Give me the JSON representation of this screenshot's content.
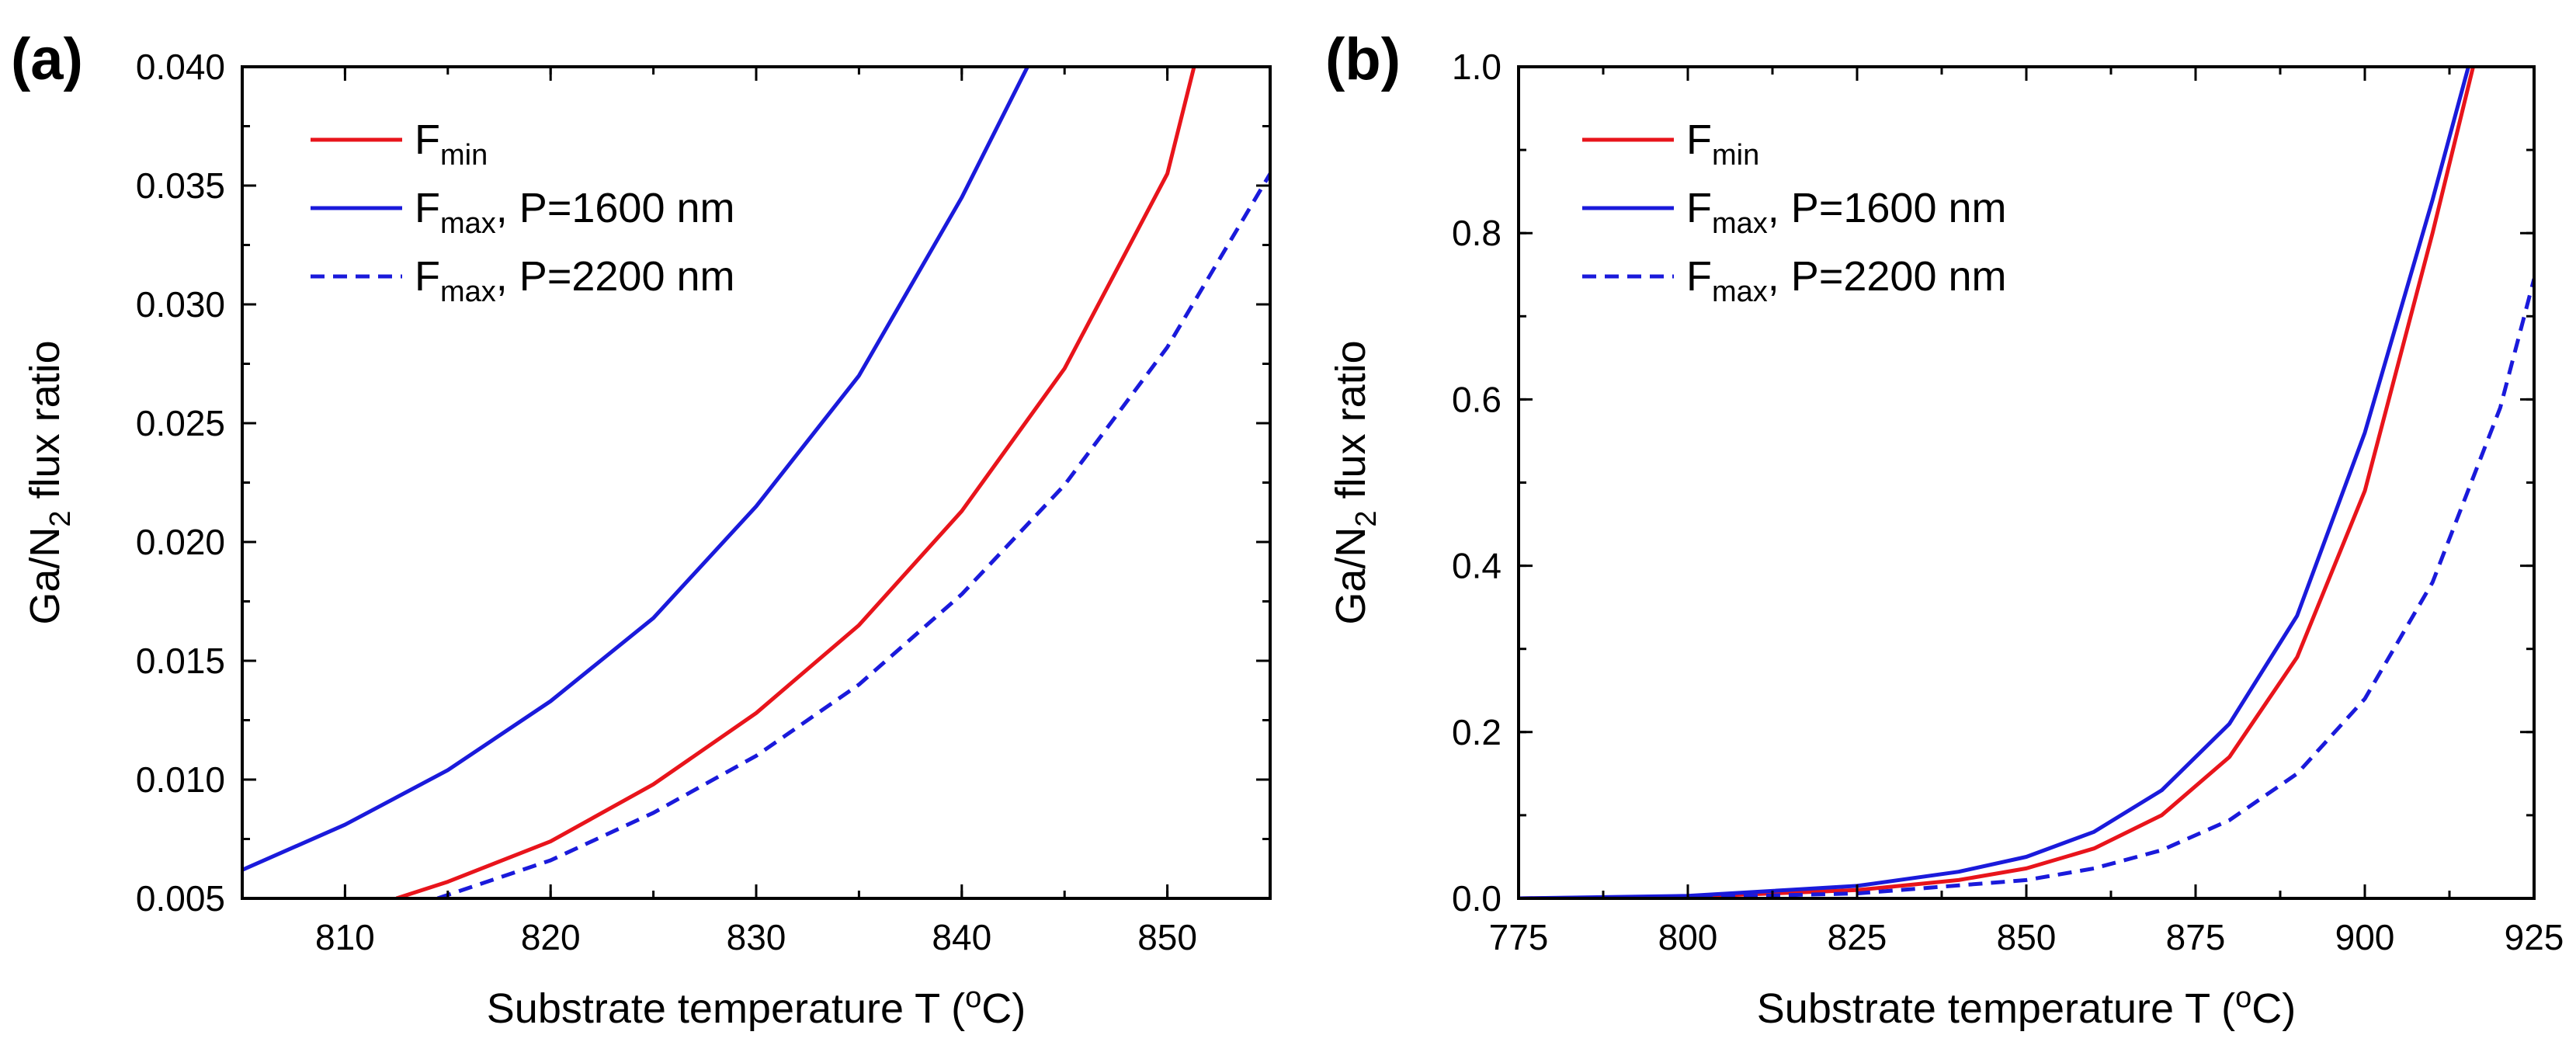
{
  "chart_data": [
    {
      "type": "line",
      "panel_label": "(a)",
      "xlabel": "Substrate temperature T (",
      "xlabel_sup": "o",
      "xlabel_end": "C)",
      "ylabel": "Ga/N",
      "ylabel_sub": "2",
      "ylabel_end": " flux ratio",
      "xlim": [
        805,
        855
      ],
      "ylim": [
        0.005,
        0.04
      ],
      "xticks": [
        810,
        820,
        830,
        840,
        850
      ],
      "xtick_labels": [
        "810",
        "820",
        "830",
        "840",
        "850"
      ],
      "yticks": [
        0.005,
        0.01,
        0.015,
        0.02,
        0.025,
        0.03,
        0.035,
        0.04
      ],
      "ytick_labels": [
        "0.005",
        "0.010",
        "0.015",
        "0.020",
        "0.025",
        "0.030",
        "0.035",
        "0.040"
      ],
      "legend_position": "top-left",
      "series": [
        {
          "name": "F",
          "sub": "min",
          "suffix": "",
          "color": "#e8141b",
          "style": "solid",
          "x": [
            812.5,
            815,
            820,
            825,
            830,
            835,
            840,
            845,
            850,
            851.3
          ],
          "y": [
            0.005,
            0.0057,
            0.0074,
            0.0098,
            0.0128,
            0.0165,
            0.0213,
            0.0273,
            0.0355,
            0.04
          ]
        },
        {
          "name": "F",
          "sub": "max",
          "suffix": ", P=1600 nm",
          "color": "#1a1adb",
          "style": "solid",
          "x": [
            805,
            810,
            815,
            820,
            825,
            830,
            835,
            840,
            843.2
          ],
          "y": [
            0.0062,
            0.0081,
            0.0104,
            0.0133,
            0.0168,
            0.0215,
            0.027,
            0.0345,
            0.04
          ]
        },
        {
          "name": "F",
          "sub": "max",
          "suffix": ", P=2200 nm",
          "color": "#1a1adb",
          "style": "dashed",
          "x": [
            814.5,
            820,
            825,
            830,
            835,
            840,
            845,
            850,
            855
          ],
          "y": [
            0.005,
            0.0066,
            0.0086,
            0.011,
            0.014,
            0.0178,
            0.0224,
            0.0282,
            0.0355
          ]
        }
      ]
    },
    {
      "type": "line",
      "panel_label": "(b)",
      "xlabel": "Substrate temperature T (",
      "xlabel_sup": "o",
      "xlabel_end": "C)",
      "ylabel": "Ga/N",
      "ylabel_sub": "2",
      "ylabel_end": " flux ratio",
      "xlim": [
        775,
        925
      ],
      "ylim": [
        0.0,
        1.0
      ],
      "xticks": [
        775,
        800,
        825,
        850,
        875,
        900,
        925
      ],
      "xtick_labels": [
        "775",
        "800",
        "825",
        "850",
        "875",
        "900",
        "925"
      ],
      "yticks": [
        0.0,
        0.2,
        0.4,
        0.6,
        0.8,
        1.0
      ],
      "ytick_labels": [
        "0.0",
        "0.2",
        "0.4",
        "0.6",
        "0.8",
        "1.0"
      ],
      "legend_position": "top-left",
      "series": [
        {
          "name": "F",
          "sub": "min",
          "suffix": "",
          "color": "#e8141b",
          "style": "solid",
          "x": [
            775,
            800,
            825,
            840,
            850,
            860,
            870,
            880,
            890,
            900,
            910,
            916
          ],
          "y": [
            0.0,
            0.002,
            0.01,
            0.022,
            0.036,
            0.06,
            0.1,
            0.17,
            0.29,
            0.49,
            0.8,
            1.0
          ]
        },
        {
          "name": "F",
          "sub": "max",
          "suffix": ", P=1600 nm",
          "color": "#1a1adb",
          "style": "solid",
          "x": [
            775,
            800,
            825,
            840,
            850,
            860,
            870,
            880,
            890,
            900,
            910,
            915.3
          ],
          "y": [
            0.0,
            0.003,
            0.015,
            0.032,
            0.05,
            0.08,
            0.13,
            0.21,
            0.34,
            0.56,
            0.84,
            1.0
          ]
        },
        {
          "name": "F",
          "sub": "max",
          "suffix": ", P=2200 nm",
          "color": "#1a1adb",
          "style": "dashed",
          "x": [
            775,
            800,
            825,
            850,
            860,
            870,
            880,
            890,
            900,
            910,
            920,
            925
          ],
          "y": [
            0.0,
            0.001,
            0.006,
            0.022,
            0.036,
            0.058,
            0.094,
            0.15,
            0.24,
            0.38,
            0.59,
            0.745
          ]
        }
      ]
    }
  ]
}
